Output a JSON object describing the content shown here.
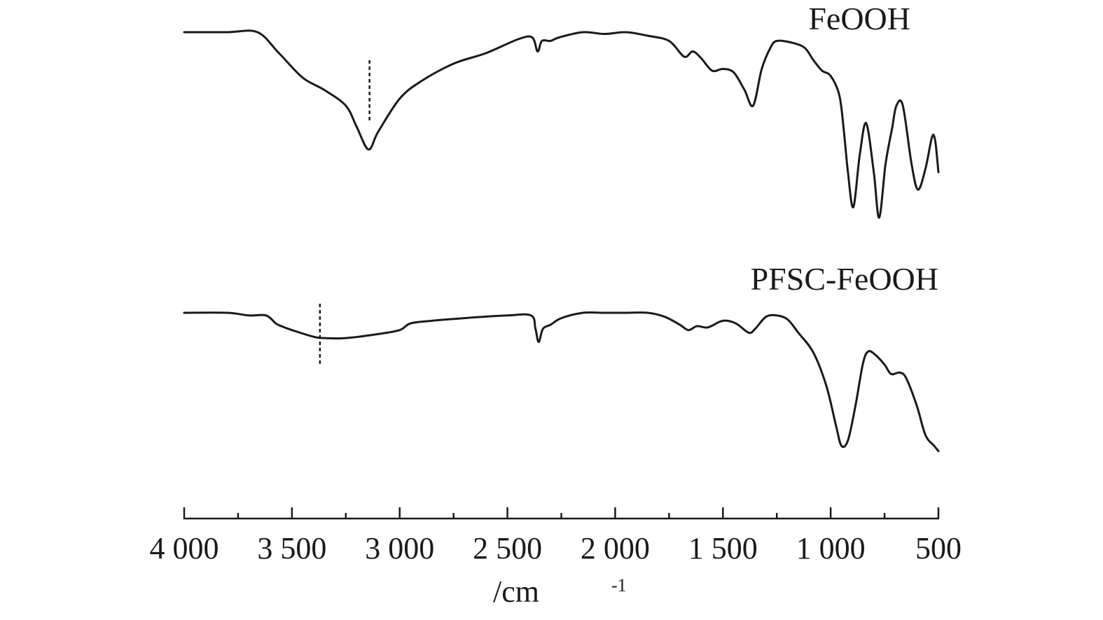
{
  "chart_data": {
    "type": "line",
    "x_reversed": true,
    "xlim": [
      4000,
      500
    ],
    "ticks": [
      4000,
      3500,
      3000,
      2500,
      2000,
      1500,
      1000,
      500
    ],
    "tick_labels": [
      "4 000",
      "3 500",
      "3 000",
      "2 500",
      "2 000",
      "1 500",
      "1 000",
      "500"
    ],
    "xlabel": "/cm",
    "xlabel_sup": "-1",
    "ylabel": "",
    "y_units": "relative transmittance (0 = trace baseline top, 1 = deepest band)",
    "grid": false,
    "series": [
      {
        "name": "FeOOH",
        "color": "#1a1a1a",
        "marker_x": 3140,
        "points": [
          [
            4000,
            0.0
          ],
          [
            3800,
            0.0
          ],
          [
            3660,
            0.0
          ],
          [
            3560,
            0.12
          ],
          [
            3450,
            0.26
          ],
          [
            3350,
            0.33
          ],
          [
            3250,
            0.42
          ],
          [
            3200,
            0.54
          ],
          [
            3145,
            0.67
          ],
          [
            3100,
            0.57
          ],
          [
            3000,
            0.38
          ],
          [
            2900,
            0.28
          ],
          [
            2750,
            0.18
          ],
          [
            2600,
            0.12
          ],
          [
            2450,
            0.04
          ],
          [
            2385,
            0.03
          ],
          [
            2360,
            0.11
          ],
          [
            2340,
            0.05
          ],
          [
            2300,
            0.05
          ],
          [
            2260,
            0.03
          ],
          [
            2150,
            0.0
          ],
          [
            2050,
            0.01
          ],
          [
            1950,
            0.0
          ],
          [
            1850,
            0.02
          ],
          [
            1750,
            0.05
          ],
          [
            1680,
            0.14
          ],
          [
            1640,
            0.11
          ],
          [
            1600,
            0.15
          ],
          [
            1550,
            0.22
          ],
          [
            1500,
            0.21
          ],
          [
            1450,
            0.23
          ],
          [
            1400,
            0.33
          ],
          [
            1360,
            0.42
          ],
          [
            1320,
            0.21
          ],
          [
            1280,
            0.09
          ],
          [
            1250,
            0.05
          ],
          [
            1180,
            0.06
          ],
          [
            1120,
            0.09
          ],
          [
            1080,
            0.16
          ],
          [
            1040,
            0.22
          ],
          [
            1000,
            0.25
          ],
          [
            960,
            0.36
          ],
          [
            940,
            0.55
          ],
          [
            920,
            0.8
          ],
          [
            895,
            1.0
          ],
          [
            865,
            0.7
          ],
          [
            835,
            0.52
          ],
          [
            800,
            0.8
          ],
          [
            775,
            1.06
          ],
          [
            745,
            0.75
          ],
          [
            715,
            0.55
          ],
          [
            695,
            0.42
          ],
          [
            665,
            0.42
          ],
          [
            625,
            0.75
          ],
          [
            595,
            0.9
          ],
          [
            560,
            0.78
          ],
          [
            530,
            0.6
          ],
          [
            515,
            0.62
          ],
          [
            500,
            0.8
          ]
        ]
      },
      {
        "name": "PFSC-FeOOH",
        "color": "#1a1a1a",
        "marker_x": 3370,
        "points": [
          [
            4000,
            0.0
          ],
          [
            3800,
            0.0
          ],
          [
            3700,
            0.02
          ],
          [
            3620,
            0.02
          ],
          [
            3575,
            0.08
          ],
          [
            3550,
            0.1
          ],
          [
            3500,
            0.13
          ],
          [
            3400,
            0.18
          ],
          [
            3350,
            0.19
          ],
          [
            3250,
            0.19
          ],
          [
            3100,
            0.16
          ],
          [
            3000,
            0.13
          ],
          [
            2950,
            0.08
          ],
          [
            2850,
            0.06
          ],
          [
            2700,
            0.04
          ],
          [
            2500,
            0.02
          ],
          [
            2390,
            0.02
          ],
          [
            2370,
            0.12
          ],
          [
            2355,
            0.22
          ],
          [
            2335,
            0.12
          ],
          [
            2300,
            0.09
          ],
          [
            2250,
            0.04
          ],
          [
            2150,
            0.0
          ],
          [
            2050,
            0.0
          ],
          [
            1950,
            0.0
          ],
          [
            1850,
            0.0
          ],
          [
            1770,
            0.03
          ],
          [
            1700,
            0.09
          ],
          [
            1660,
            0.13
          ],
          [
            1620,
            0.1
          ],
          [
            1570,
            0.11
          ],
          [
            1500,
            0.06
          ],
          [
            1440,
            0.08
          ],
          [
            1380,
            0.15
          ],
          [
            1350,
            0.12
          ],
          [
            1300,
            0.03
          ],
          [
            1250,
            0.02
          ],
          [
            1200,
            0.05
          ],
          [
            1150,
            0.15
          ],
          [
            1080,
            0.3
          ],
          [
            1020,
            0.55
          ],
          [
            975,
            0.85
          ],
          [
            950,
            1.0
          ],
          [
            920,
            0.96
          ],
          [
            885,
            0.7
          ],
          [
            850,
            0.38
          ],
          [
            825,
            0.29
          ],
          [
            790,
            0.32
          ],
          [
            750,
            0.39
          ],
          [
            720,
            0.46
          ],
          [
            680,
            0.45
          ],
          [
            650,
            0.49
          ],
          [
            600,
            0.7
          ],
          [
            560,
            0.92
          ],
          [
            520,
            1.0
          ],
          [
            500,
            1.04
          ]
        ]
      }
    ]
  }
}
